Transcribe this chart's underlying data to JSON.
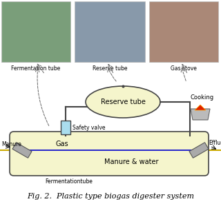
{
  "title": "Fig. 2.  Plastic type biogas digester system",
  "bg_color": "#ffffff",
  "tube_fill": "#f5f5cc",
  "tube_edge": "#444444",
  "blue_color": "#0000cc",
  "yellow_color": "#ccaa00",
  "sv_fill": "#aaddee",
  "pipe_color": "#444444",
  "gray_color": "#aaaaaa",
  "dashed_color": "#666666",
  "photo1_color": "#7a9e7a",
  "photo2_color": "#8899aa",
  "photo3_color": "#aa8877",
  "labels": {
    "ft_top": "Fermentation tube",
    "rt_top": "Reserve tube",
    "gs_top": "Gas stove",
    "reserve_tube": "Reserve tube",
    "safety_valve": "Safety valve",
    "cooking": "Cooking",
    "manure": "Manure",
    "effluent": "Effluent",
    "gas": "Gas",
    "manure_water": "Manure & water",
    "ft_bottom": "Fermentationtube"
  }
}
